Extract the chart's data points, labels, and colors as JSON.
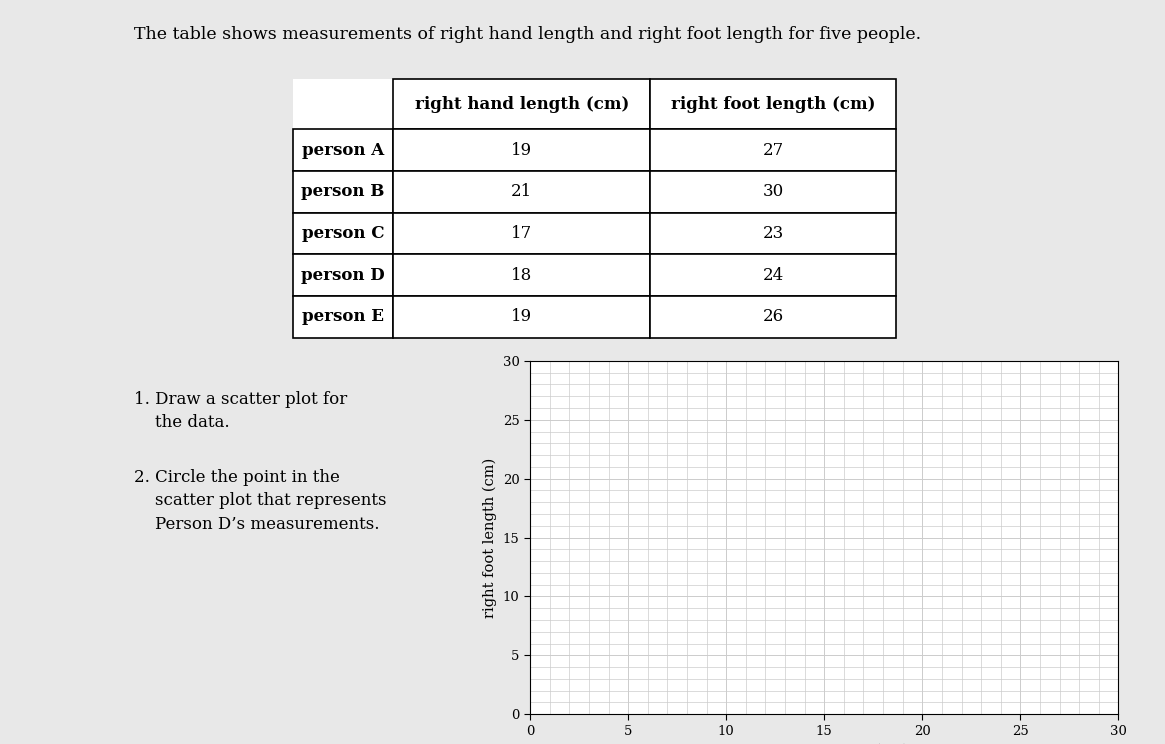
{
  "title": "The table shows measurements of right hand length and right foot length for five people.",
  "title_fontsize": 12.5,
  "table": {
    "col_headers": [
      "",
      "right hand length (cm)",
      "right foot length (cm)"
    ],
    "rows": [
      [
        "person A",
        "19",
        "27"
      ],
      [
        "person B",
        "21",
        "30"
      ],
      [
        "person C",
        "17",
        "23"
      ],
      [
        "person D",
        "18",
        "24"
      ],
      [
        "person E",
        "19",
        "26"
      ]
    ]
  },
  "question1_line1": "1. Draw a scatter plot for",
  "question1_line2": "    the data.",
  "question2_line1": "2. Circle the point in the",
  "question2_line2": "    scatter plot that represents",
  "question2_line3": "    Person D’s measurements.",
  "plot": {
    "xlabel": "right hand height (cm)",
    "ylabel": "right foot length (cm)",
    "xlim": [
      0,
      30
    ],
    "ylim": [
      0,
      30
    ],
    "xticks": [
      0,
      5,
      10,
      15,
      20,
      25,
      30
    ],
    "yticks": [
      0,
      5,
      10,
      15,
      20,
      25,
      30
    ],
    "grid_color": "#cccccc",
    "grid_linewidth": 0.5
  },
  "bg_color": "#e8e8e8",
  "content_bg": "#ffffff",
  "text_color": "#000000"
}
